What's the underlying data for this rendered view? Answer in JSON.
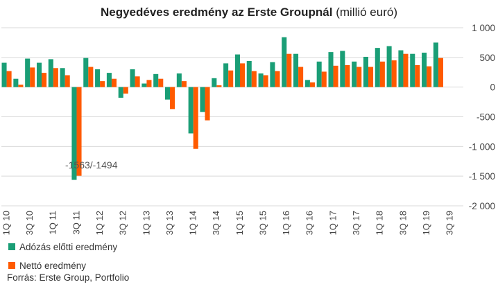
{
  "chart_data": {
    "type": "bar",
    "title": "Negyedéves eredmény az Erste Groupnál",
    "title_unit": "(millió euró)",
    "categories": [
      "1Q 10",
      "2Q 10",
      "3Q 10",
      "4Q 10",
      "1Q 11",
      "2Q 11",
      "3Q 11",
      "4Q 11",
      "1Q 12",
      "2Q 12",
      "3Q 12",
      "4Q 12",
      "1Q 13",
      "2Q 13",
      "3Q 13",
      "4Q 13",
      "1Q 14",
      "2Q 14",
      "3Q 14",
      "4Q 14",
      "1Q 15",
      "2Q 15",
      "3Q 15",
      "4Q 15",
      "1Q 16",
      "2Q 16",
      "3Q 16",
      "4Q 16",
      "1Q 17",
      "2Q 17",
      "3Q 17",
      "4Q 17",
      "1Q 18",
      "2Q 18",
      "3Q 18",
      "4Q 18",
      "1Q 19",
      "2Q 19",
      "3Q 19"
    ],
    "tick_labels": [
      "1Q 10",
      "",
      "3Q 10",
      "",
      "1Q 11",
      "",
      "3Q 11",
      "",
      "1Q 12",
      "",
      "3Q 12",
      "",
      "1Q 13",
      "",
      "3Q 13",
      "",
      "1Q 14",
      "",
      "3Q 14",
      "",
      "1Q 15",
      "",
      "3Q 15",
      "",
      "1Q 16",
      "",
      "3Q 16",
      "",
      "1Q 17",
      "",
      "3Q 17",
      "",
      "1Q 18",
      "",
      "3Q 18",
      "",
      "1Q 19",
      "",
      "3Q 19"
    ],
    "series": [
      {
        "name": "Adózás előtti eredmény",
        "color": "#1a9e76",
        "values": [
          410,
          140,
          480,
          410,
          470,
          320,
          -1563,
          490,
          300,
          240,
          -180,
          300,
          60,
          220,
          -210,
          230,
          -780,
          -420,
          150,
          400,
          550,
          440,
          230,
          420,
          840,
          560,
          120,
          430,
          590,
          610,
          430,
          510,
          660,
          690,
          620,
          560,
          580,
          750,
          0
        ]
      },
      {
        "name": "Nettó eredmény",
        "color": "#ff5a00",
        "values": [
          270,
          40,
          330,
          240,
          320,
          200,
          -1494,
          340,
          100,
          140,
          -110,
          180,
          120,
          140,
          -370,
          100,
          -1040,
          -560,
          30,
          280,
          400,
          270,
          200,
          270,
          560,
          340,
          80,
          260,
          360,
          370,
          340,
          340,
          430,
          450,
          560,
          370,
          350,
          490,
          0
        ]
      }
    ],
    "ylim": [
      -2000,
      1000
    ],
    "yticks": [
      1000,
      500,
      0,
      -500,
      -1000,
      -1500,
      -2000
    ],
    "ytick_labels": [
      "1 000",
      "500",
      "0",
      "-500",
      "-1 000",
      "-1 500",
      "-2 000"
    ],
    "annotation": {
      "text": "-1563/-1494",
      "category_index": 6
    },
    "grid": true,
    "legend_position": "bottom-left",
    "source": "Forrás: Erste Group, Portfolio"
  }
}
